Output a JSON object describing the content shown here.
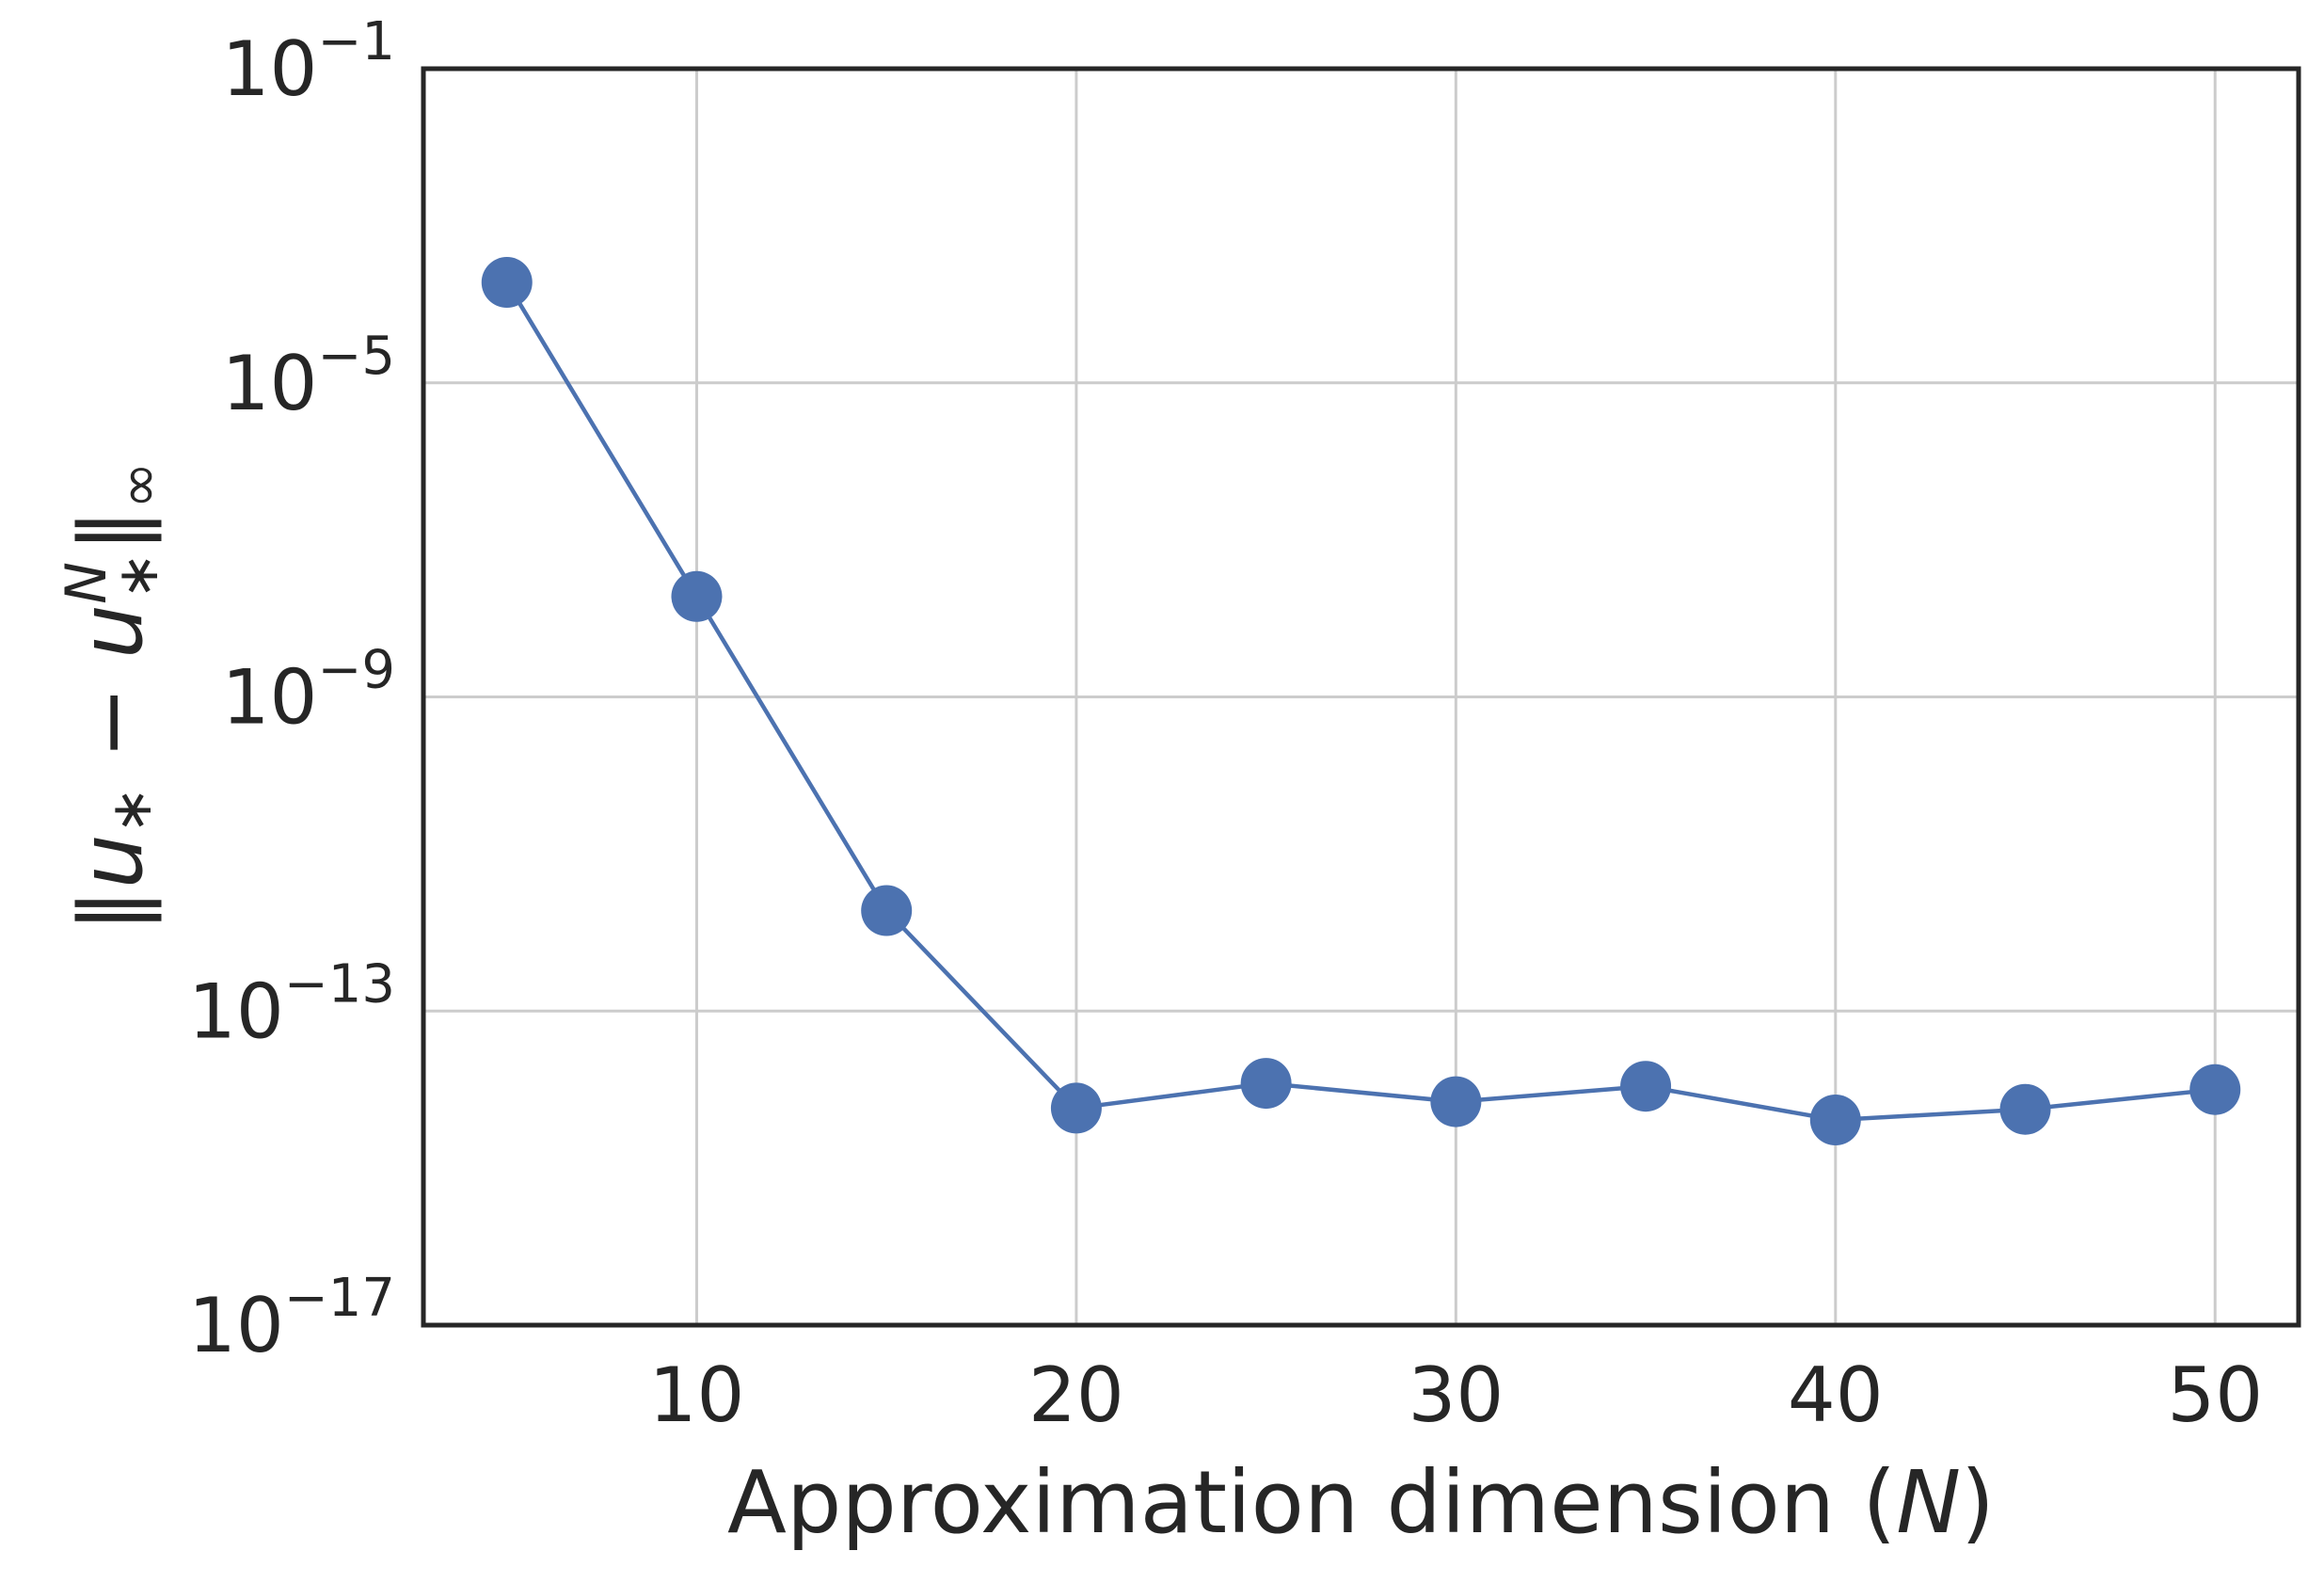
{
  "chart_data": {
    "type": "line",
    "title": "",
    "xlabel": "Approximation dimension (N)",
    "xlabel_parts": {
      "prefix": "Approximation dimension (",
      "var": "N",
      "suffix": ")"
    },
    "ylabel": "‖u* − u*^N‖∞",
    "yscale": "log",
    "xlim": [
      2.8,
      52.2
    ],
    "ylim": [
      1e-17,
      0.1
    ],
    "grid": true,
    "legend": "none",
    "x_ticks": [
      10,
      20,
      30,
      40,
      50
    ],
    "x_tick_labels": [
      "10",
      "20",
      "30",
      "40",
      "50"
    ],
    "y_ticks": [
      {
        "value": 0.1,
        "base": "10",
        "exp": "−1"
      },
      {
        "value": 1e-05,
        "base": "10",
        "exp": "−5"
      },
      {
        "value": 1e-09,
        "base": "10",
        "exp": "−9"
      },
      {
        "value": 1e-13,
        "base": "10",
        "exp": "−13"
      },
      {
        "value": 1e-17,
        "base": "10",
        "exp": "−17"
      }
    ],
    "series": [
      {
        "color": "#4c72b0",
        "x": [
          5,
          10,
          15,
          20,
          25,
          30,
          35,
          40,
          45,
          50
        ],
        "y": [
          0.00019,
          1.9e-08,
          1.9e-12,
          5.8e-15,
          1.2e-14,
          7e-15,
          1.1e-14,
          4.1e-15,
          5.6e-15,
          1e-14
        ]
      }
    ]
  }
}
